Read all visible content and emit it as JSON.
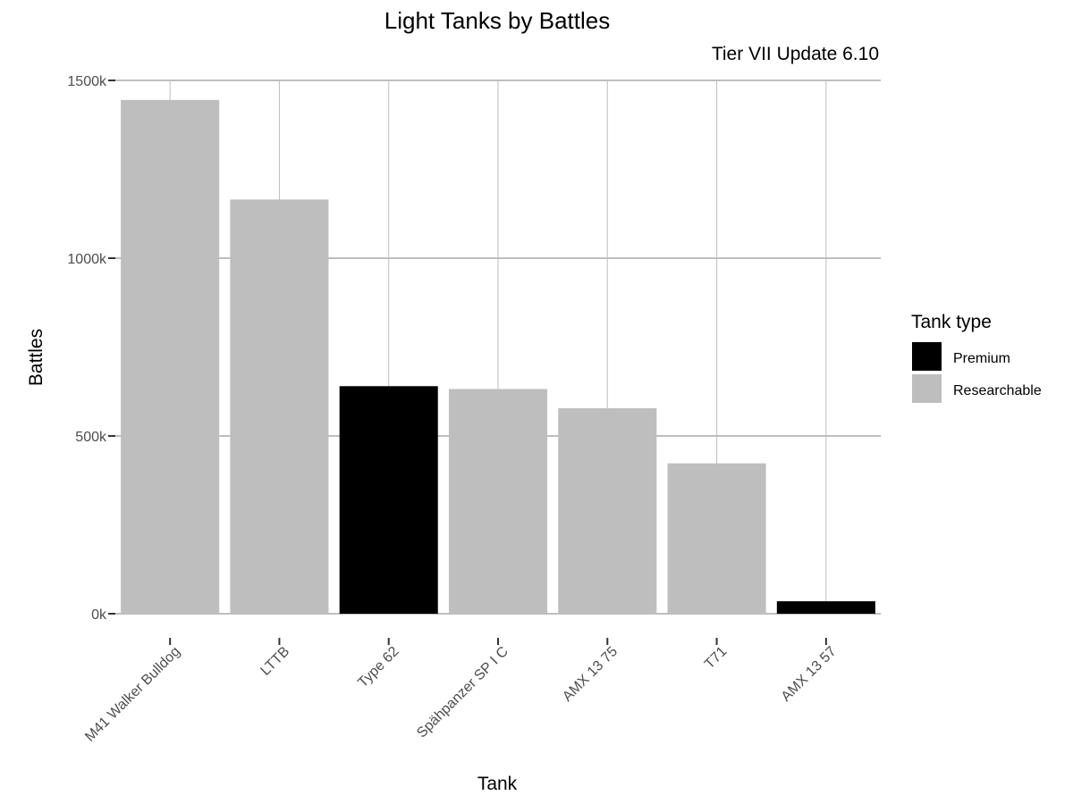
{
  "chart_data": {
    "type": "bar",
    "title": "Light Tanks by Battles",
    "subtitle": "Tier VII Update 6.10",
    "xlabel": "Tank",
    "ylabel": "Battles",
    "categories": [
      "M41 Walker Bulldog",
      "LTTB",
      "Type 62",
      "Spähpanzer SP I C",
      "AMX 13 75",
      "T71",
      "AMX 13 57"
    ],
    "values": [
      1445000,
      1165000,
      640000,
      632000,
      578000,
      423000,
      35000
    ],
    "tank_type": [
      "Researchable",
      "Researchable",
      "Premium",
      "Researchable",
      "Researchable",
      "Researchable",
      "Premium"
    ],
    "ylim": [
      -60000,
      1500000
    ],
    "y_ticks": [
      0,
      500000,
      1000000,
      1500000
    ],
    "y_tick_labels": [
      "0k",
      "500k",
      "1000k",
      "1500k"
    ],
    "grid": true,
    "legend": {
      "title": "Tank type",
      "placement": "right",
      "entries": [
        {
          "label": "Premium",
          "color": "#000000"
        },
        {
          "label": "Researchable",
          "color": "#bebebe"
        }
      ]
    }
  }
}
